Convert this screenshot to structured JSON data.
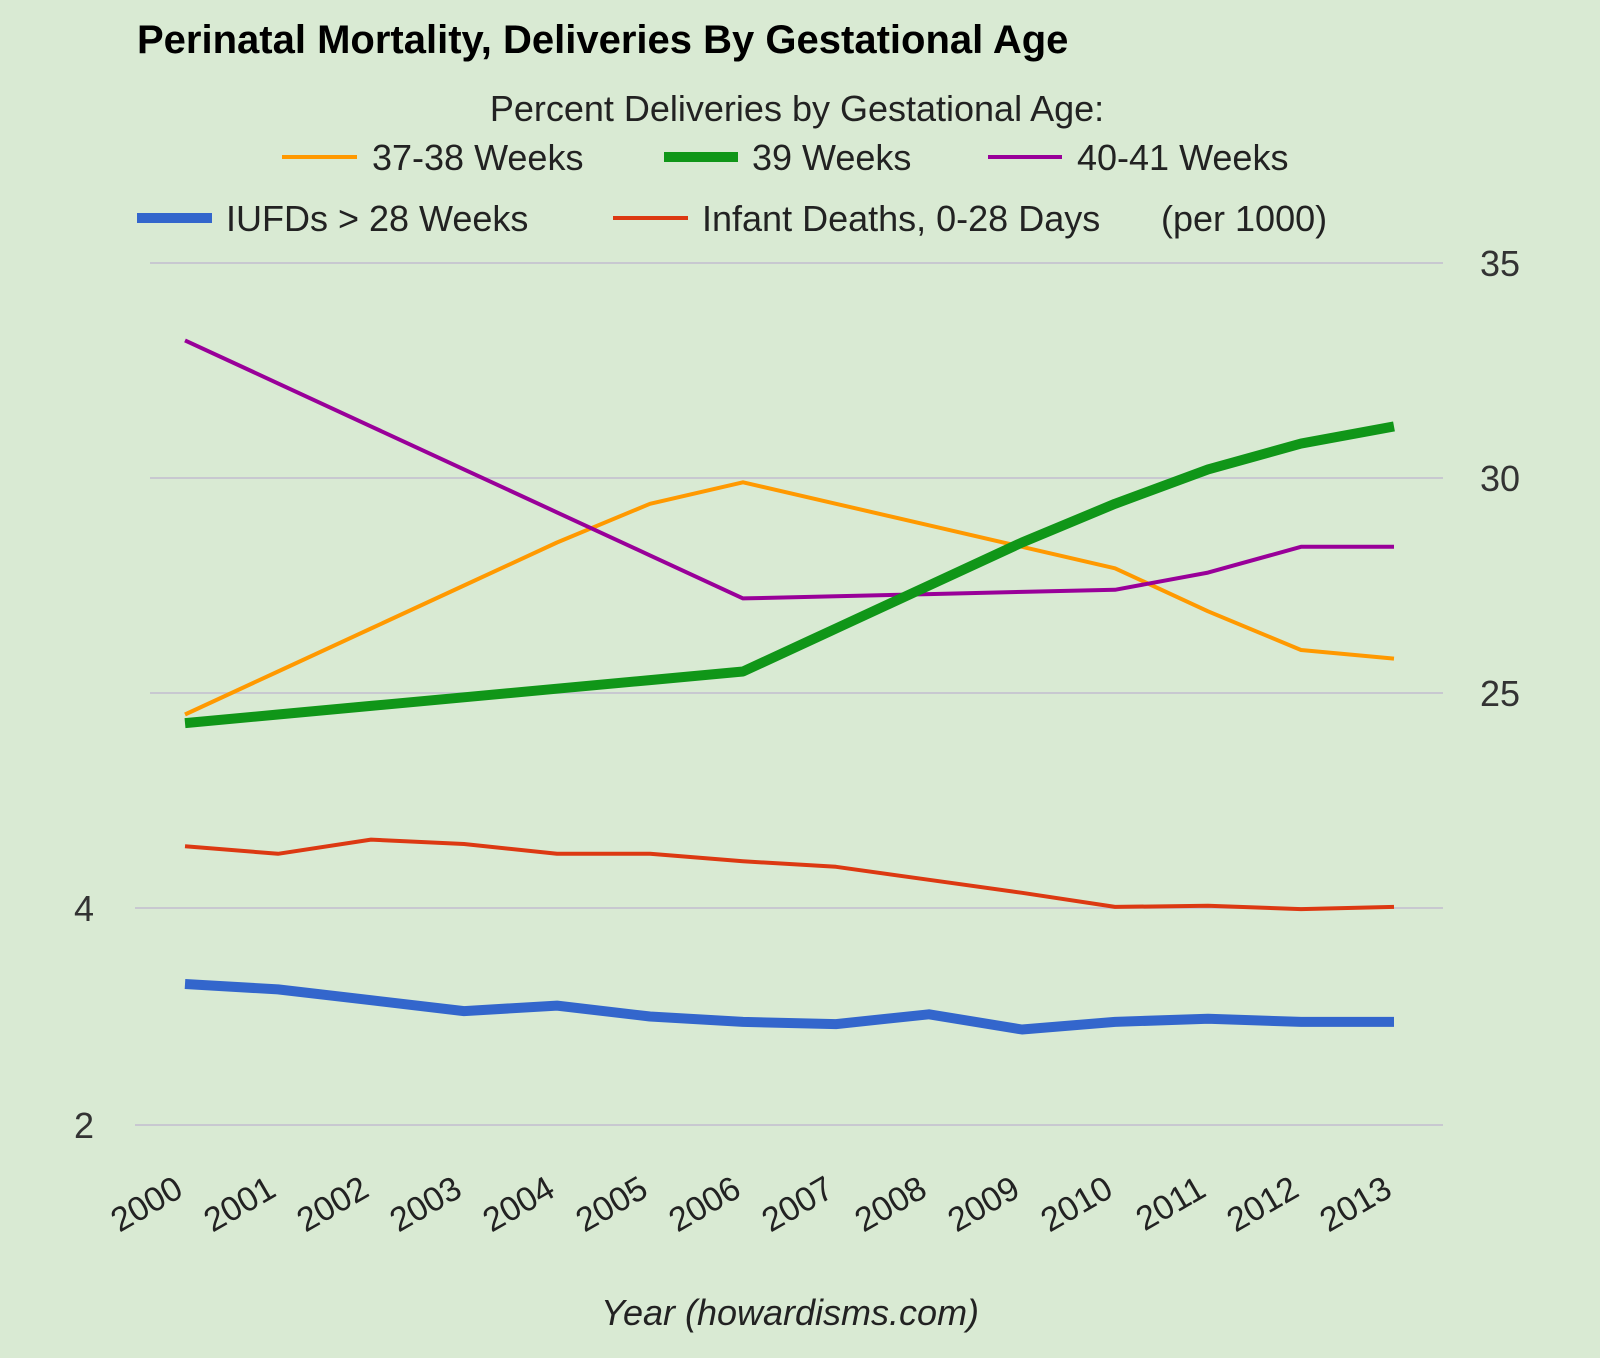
{
  "chart_data": {
    "type": "line",
    "title": "Perinatal Mortality, Deliveries By Gestational Age",
    "legend_heading": "Percent Deliveries by Gestational Age:",
    "legend_note": "(per 1000)",
    "xlabel": "Year (howardisms.com)",
    "x": [
      "2000",
      "2001",
      "2002",
      "2003",
      "2004",
      "2005",
      "2006",
      "2007",
      "2008",
      "2009",
      "2010",
      "2011",
      "2012",
      "2013"
    ],
    "grid": true,
    "legend_position": "top",
    "right_axis": {
      "ticks": [
        35,
        30,
        25
      ],
      "ylim": [
        20,
        35
      ]
    },
    "left_axis": {
      "ticks": [
        4,
        2
      ],
      "ylim": [
        2,
        7
      ]
    },
    "series": [
      {
        "name": "37-38 Weeks",
        "axis": "right",
        "color": "#ff9900",
        "values": [
          24.5,
          25.5,
          26.5,
          27.5,
          28.5,
          29.4,
          29.9,
          29.4,
          28.9,
          28.4,
          27.9,
          26.9,
          26.0,
          25.8
        ]
      },
      {
        "name": "39 Weeks",
        "axis": "right",
        "color": "#109618",
        "values": [
          24.3,
          24.5,
          24.7,
          24.9,
          25.1,
          25.3,
          25.5,
          26.5,
          27.5,
          28.5,
          29.4,
          30.2,
          30.8,
          31.2
        ]
      },
      {
        "name": "40-41 Weeks",
        "axis": "right",
        "color": "#990099",
        "values": [
          33.2,
          32.2,
          31.2,
          30.2,
          29.2,
          28.2,
          27.2,
          27.25,
          27.3,
          27.35,
          27.4,
          27.8,
          28.4,
          28.4
        ]
      },
      {
        "name": "IUFDs > 28 Weeks",
        "axis": "left",
        "color": "#3366cc",
        "values": [
          3.3,
          3.25,
          3.15,
          3.05,
          3.1,
          3.0,
          2.95,
          2.93,
          3.02,
          2.88,
          2.95,
          2.98,
          2.95,
          2.95
        ]
      },
      {
        "name": "Infant Deaths, 0-28 Days",
        "axis": "left",
        "color": "#dc3912",
        "values": [
          4.57,
          4.5,
          4.63,
          4.59,
          4.5,
          4.5,
          4.43,
          4.38,
          4.26,
          4.14,
          4.01,
          4.02,
          3.99,
          4.01
        ]
      }
    ]
  }
}
